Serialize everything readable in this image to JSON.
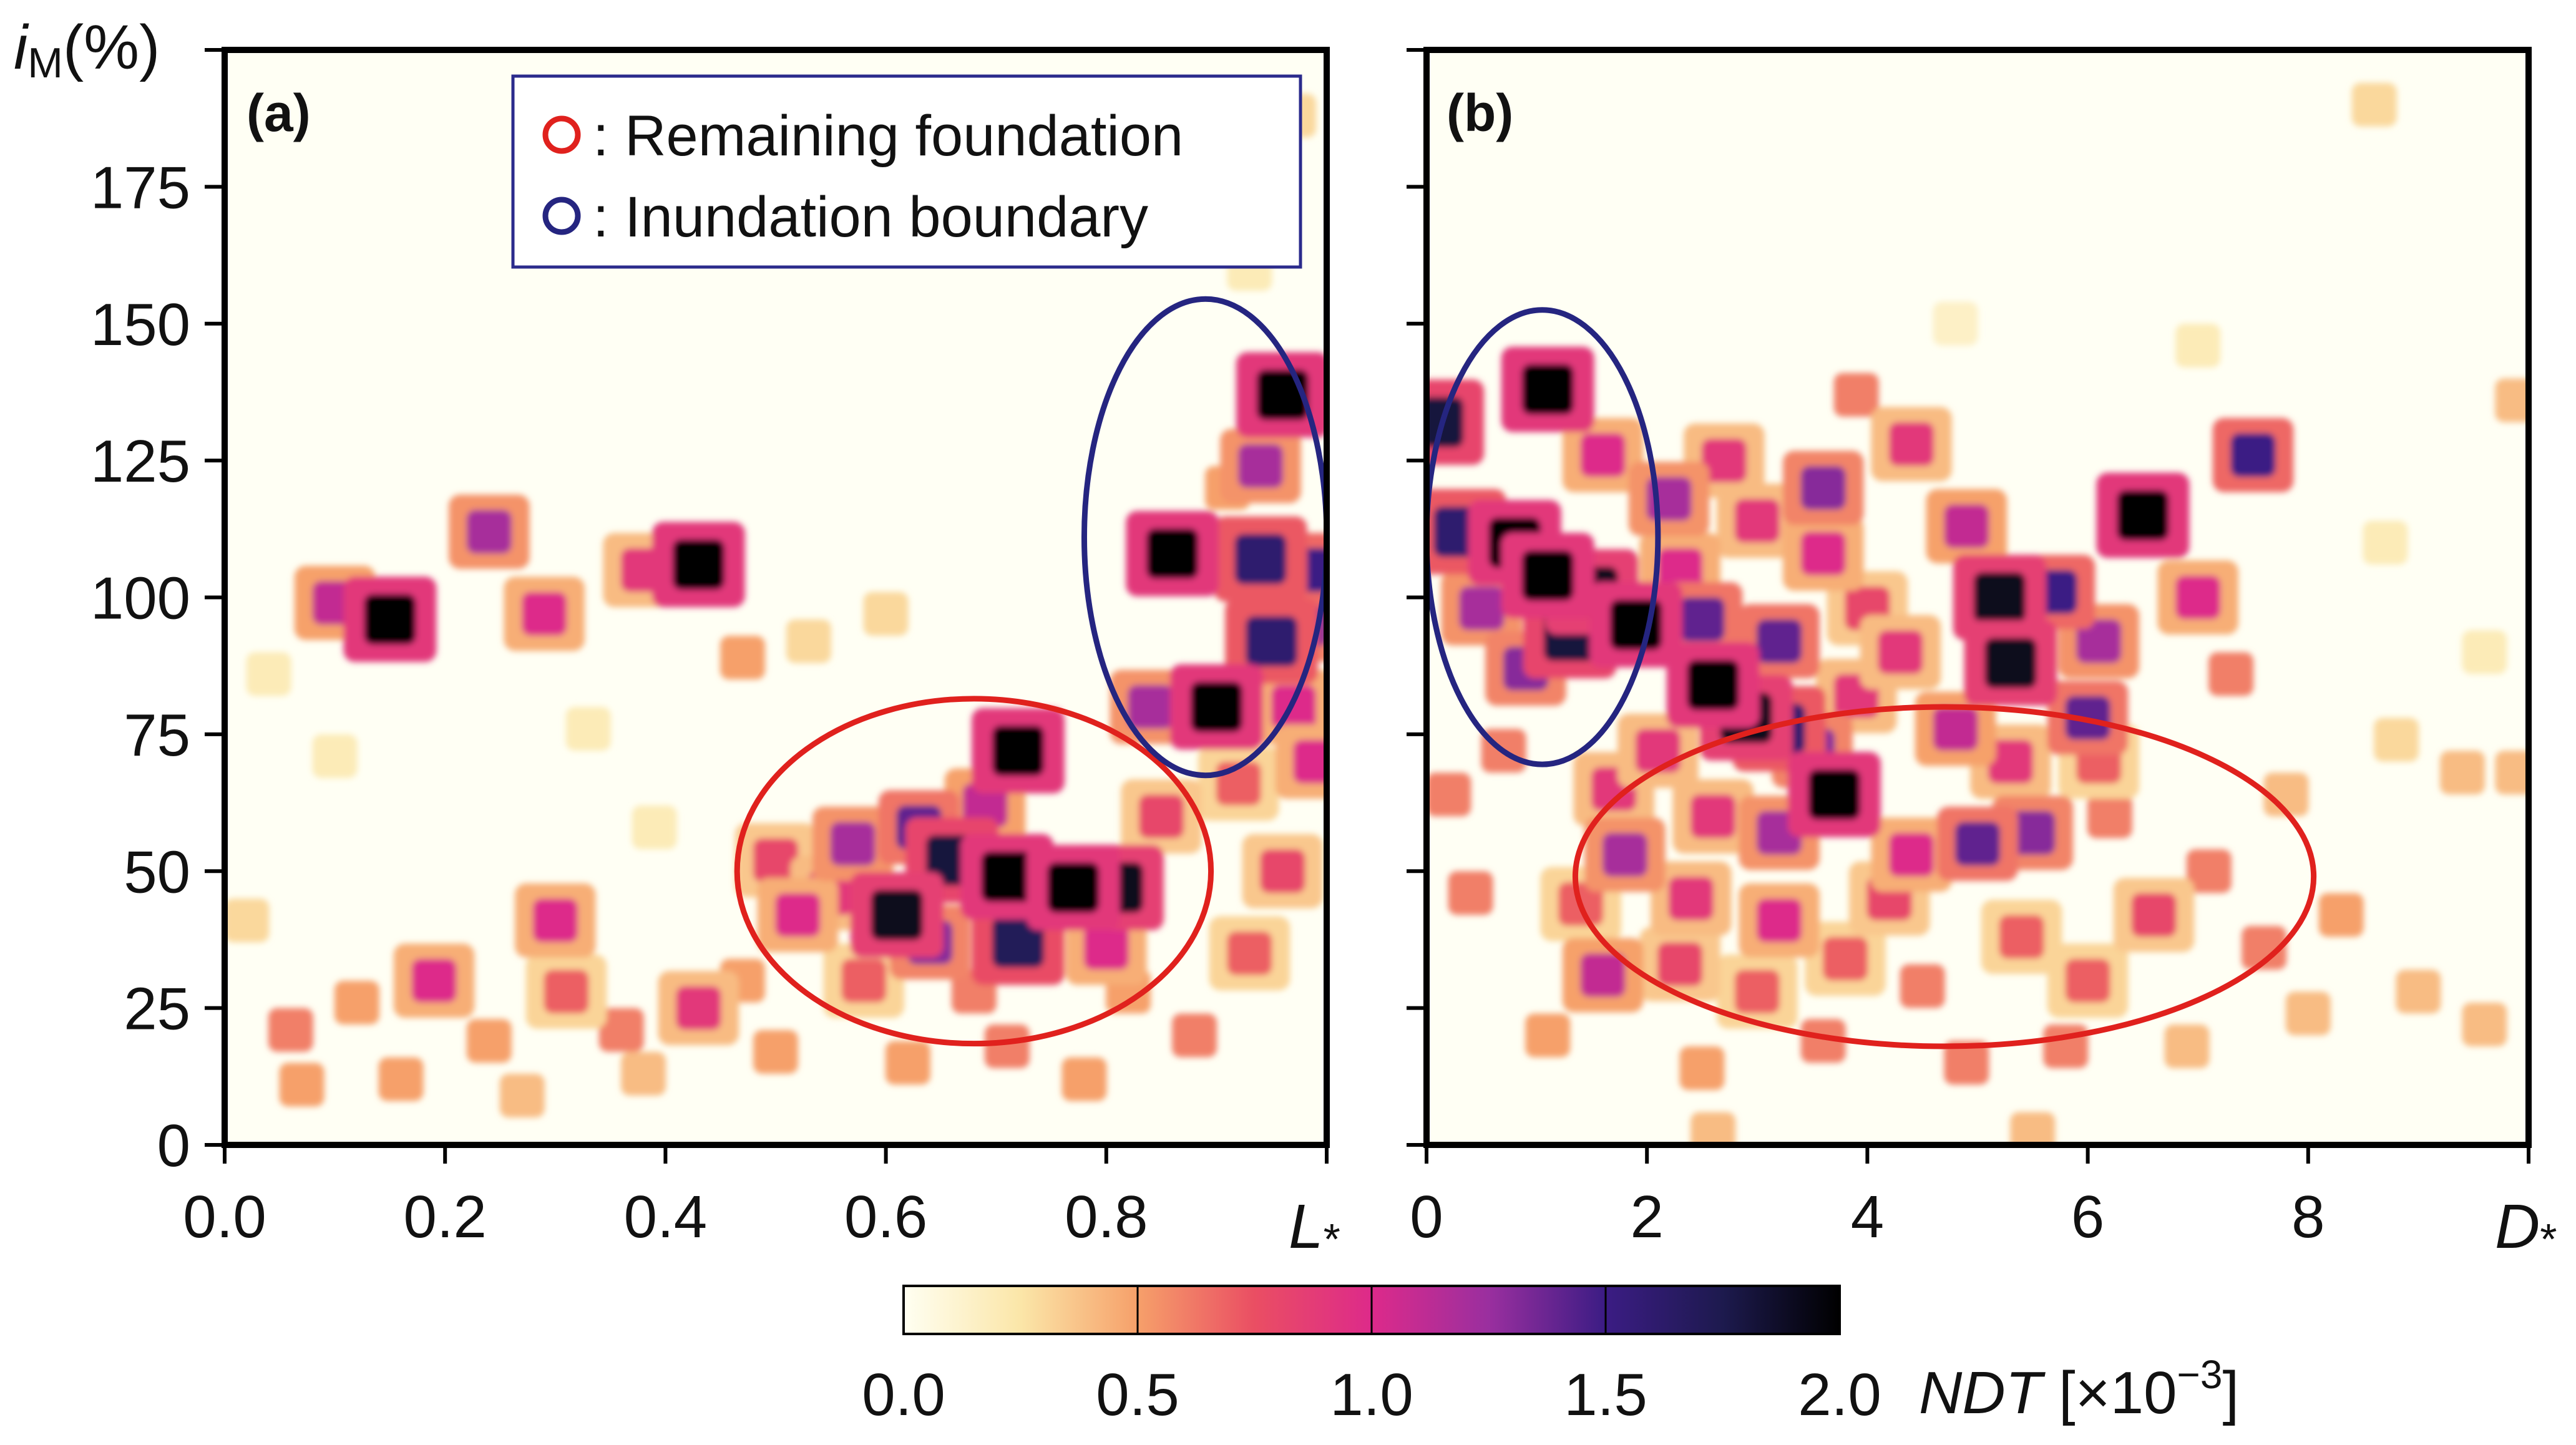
{
  "chart_data": {
    "type": "heatmap",
    "colormap": {
      "name": "magma_r",
      "stops": [
        {
          "value": 0.0,
          "color": "#fffff2"
        },
        {
          "value": 0.25,
          "color": "#fbe6a8"
        },
        {
          "value": 0.5,
          "color": "#f6a06a"
        },
        {
          "value": 0.75,
          "color": "#ea4e63"
        },
        {
          "value": 1.0,
          "color": "#dd2a8a"
        },
        {
          "value": 1.25,
          "color": "#9a2f9f"
        },
        {
          "value": 1.5,
          "color": "#3b1c84"
        },
        {
          "value": 1.75,
          "color": "#1d1a4e"
        },
        {
          "value": 2.0,
          "color": "#000000"
        }
      ]
    },
    "y_axis": {
      "label_main": "i",
      "label_sub": "M",
      "label_unit": "(%)",
      "range": [
        0,
        200
      ],
      "ticks": [
        "0",
        "25",
        "50",
        "75",
        "100",
        "125",
        "150",
        "175"
      ]
    },
    "colorbar": {
      "range": [
        0,
        2.0
      ],
      "ticks": [
        "0.0",
        "0.5",
        "1.0",
        "1.5",
        "2.0"
      ],
      "label": "NDT",
      "unit_prefix": " [×10",
      "unit_exp": "−3",
      "unit_suffix": "]"
    },
    "legend": {
      "items": [
        {
          "label": ": Remaining foundation",
          "color": "#e0211d"
        },
        {
          "label": ": Inundation boundary",
          "color": "#252580"
        }
      ]
    },
    "panels": [
      {
        "id": "a",
        "label": "(a)",
        "xlabel": "L",
        "xlabel_sub": "*",
        "xlim": [
          0,
          1.0
        ],
        "xticks": [
          "0.0",
          "0.2",
          "0.4",
          "0.6",
          "0.8"
        ],
        "ellipses": [
          {
            "name": "remaining-foundation",
            "color": "#e0211d",
            "cx": 0.68,
            "cy": 50,
            "rx": 0.215,
            "ry": 31.5
          },
          {
            "name": "inundation-boundary",
            "color": "#252580",
            "cx": 0.89,
            "cy": 111,
            "rx": 0.11,
            "ry": 43.5
          }
        ],
        "cells": [
          [
            0.1,
            99,
            1.1
          ],
          [
            0.15,
            96,
            2.0
          ],
          [
            0.24,
            112,
            1.2
          ],
          [
            0.29,
            97,
            1.0
          ],
          [
            0.38,
            105,
            0.9
          ],
          [
            0.43,
            106,
            2.0
          ],
          [
            0.47,
            89,
            0.5
          ],
          [
            0.53,
            92,
            0.3
          ],
          [
            0.6,
            97,
            0.3
          ],
          [
            0.72,
            72,
            2.0
          ],
          [
            0.69,
            62,
            1.1
          ],
          [
            0.66,
            52,
            1.8
          ],
          [
            0.71,
            49,
            2.0
          ],
          [
            0.77,
            47,
            2.0
          ],
          [
            0.81,
            47,
            1.9
          ],
          [
            0.63,
            58,
            1.4
          ],
          [
            0.57,
            55,
            1.2
          ],
          [
            0.5,
            52,
            0.8
          ],
          [
            0.55,
            46,
            0.9
          ],
          [
            0.61,
            42,
            1.9
          ],
          [
            0.64,
            37,
            1.3
          ],
          [
            0.72,
            37,
            1.7
          ],
          [
            0.8,
            36,
            1.0
          ],
          [
            0.52,
            42,
            1.0
          ],
          [
            0.58,
            30,
            0.7
          ],
          [
            0.68,
            28,
            0.6
          ],
          [
            0.47,
            30,
            0.5
          ],
          [
            0.43,
            25,
            0.9
          ],
          [
            0.36,
            21,
            0.6
          ],
          [
            0.31,
            28,
            0.7
          ],
          [
            0.19,
            30,
            1.0
          ],
          [
            0.12,
            26,
            0.5
          ],
          [
            0.06,
            21,
            0.6
          ],
          [
            0.24,
            19,
            0.5
          ],
          [
            0.3,
            41,
            1.0
          ],
          [
            0.07,
            11,
            0.5
          ],
          [
            0.16,
            12,
            0.5
          ],
          [
            0.27,
            9,
            0.4
          ],
          [
            0.38,
            13,
            0.4
          ],
          [
            0.5,
            17,
            0.5
          ],
          [
            0.62,
            15,
            0.5
          ],
          [
            0.71,
            18,
            0.6
          ],
          [
            0.78,
            12,
            0.5
          ],
          [
            0.02,
            41,
            0.3
          ],
          [
            0.04,
            86,
            0.2
          ],
          [
            0.1,
            71,
            0.2
          ],
          [
            0.33,
            76,
            0.2
          ],
          [
            0.39,
            58,
            0.2
          ],
          [
            0.82,
            28,
            0.5
          ],
          [
            0.88,
            20,
            0.6
          ],
          [
            0.93,
            35,
            0.7
          ],
          [
            0.96,
            50,
            0.8
          ],
          [
            0.85,
            60,
            0.8
          ],
          [
            0.92,
            66,
            0.7
          ],
          [
            0.96,
            137,
            2.0
          ],
          [
            0.94,
            124,
            1.2
          ],
          [
            0.86,
            108,
            2.0
          ],
          [
            0.94,
            107,
            1.6
          ],
          [
            0.99,
            105,
            1.5
          ],
          [
            0.95,
            92,
            1.6
          ],
          [
            0.9,
            80,
            2.0
          ],
          [
            0.84,
            80,
            1.2
          ],
          [
            0.97,
            80,
            1.0
          ],
          [
            0.91,
            120,
            0.5
          ],
          [
            0.98,
            95,
            1.3
          ],
          [
            0.99,
            70,
            1.0
          ],
          [
            0.97,
            188,
            0.3
          ],
          [
            0.93,
            160,
            0.2
          ]
        ]
      },
      {
        "id": "b",
        "label": "(b)",
        "xlabel": "D",
        "xlabel_sub": "*",
        "xlim": [
          0,
          10
        ],
        "xticks": [
          "0",
          "2",
          "4",
          "6",
          "8"
        ],
        "ellipses": [
          {
            "name": "inundation-boundary",
            "color": "#252580",
            "cx": 1.05,
            "cy": 111,
            "rx": 1.05,
            "ry": 41.5
          },
          {
            "name": "remaining-foundation",
            "color": "#e0211d",
            "cx": 4.7,
            "cy": 49,
            "rx": 3.35,
            "ry": 31
          }
        ],
        "cells": [
          [
            0.1,
            132,
            1.8
          ],
          [
            1.1,
            138,
            2.0
          ],
          [
            0.3,
            112,
            1.6
          ],
          [
            0.8,
            110,
            2.0
          ],
          [
            1.1,
            104,
            2.0
          ],
          [
            1.5,
            101,
            1.9
          ],
          [
            1.3,
            93,
            1.8
          ],
          [
            1.9,
            95,
            2.0
          ],
          [
            2.5,
            96,
            1.4
          ],
          [
            0.5,
            98,
            1.2
          ],
          [
            0.9,
            87,
            1.3
          ],
          [
            1.6,
            126,
            1.0
          ],
          [
            2.2,
            118,
            1.2
          ],
          [
            2.3,
            105,
            1.0
          ],
          [
            2.6,
            84,
            2.0
          ],
          [
            2.9,
            78,
            1.9
          ],
          [
            3.2,
            76,
            1.6
          ],
          [
            3.5,
            72,
            1.3
          ],
          [
            3.2,
            92,
            1.4
          ],
          [
            3.6,
            108,
            1.0
          ],
          [
            3.7,
            64,
            2.0
          ],
          [
            3.2,
            57,
            1.2
          ],
          [
            3.9,
            82,
            0.9
          ],
          [
            3.6,
            120,
            1.3
          ],
          [
            4.0,
            98,
            0.8
          ],
          [
            4.3,
            90,
            0.9
          ],
          [
            4.4,
            128,
            0.9
          ],
          [
            4.9,
            113,
            1.1
          ],
          [
            5.2,
            100,
            1.9
          ],
          [
            5.3,
            88,
            1.9
          ],
          [
            5.7,
            101,
            1.5
          ],
          [
            6.1,
            92,
            1.2
          ],
          [
            6.5,
            115,
            2.0
          ],
          [
            7.0,
            100,
            1.0
          ],
          [
            7.5,
            126,
            1.5
          ],
          [
            7.3,
            86,
            0.6
          ],
          [
            6.0,
            78,
            1.4
          ],
          [
            5.3,
            70,
            0.9
          ],
          [
            4.8,
            76,
            1.1
          ],
          [
            5.0,
            55,
            1.4
          ],
          [
            5.5,
            57,
            1.3
          ],
          [
            4.4,
            53,
            1.0
          ],
          [
            4.2,
            45,
            0.8
          ],
          [
            3.2,
            41,
            1.0
          ],
          [
            2.4,
            45,
            0.9
          ],
          [
            1.8,
            53,
            1.2
          ],
          [
            1.7,
            65,
            0.9
          ],
          [
            2.1,
            72,
            0.9
          ],
          [
            1.6,
            31,
            1.1
          ],
          [
            2.3,
            33,
            0.8
          ],
          [
            3.0,
            28,
            0.7
          ],
          [
            3.8,
            34,
            0.7
          ],
          [
            4.5,
            29,
            0.6
          ],
          [
            5.4,
            38,
            0.7
          ],
          [
            6.0,
            30,
            0.7
          ],
          [
            6.6,
            42,
            0.8
          ],
          [
            7.1,
            50,
            0.6
          ],
          [
            7.6,
            36,
            0.6
          ],
          [
            8.3,
            42,
            0.5
          ],
          [
            9.0,
            28,
            0.4
          ],
          [
            9.6,
            22,
            0.4
          ],
          [
            5.8,
            18,
            0.6
          ],
          [
            4.9,
            15,
            0.6
          ],
          [
            3.6,
            19,
            0.6
          ],
          [
            2.5,
            14,
            0.5
          ],
          [
            1.1,
            20,
            0.5
          ],
          [
            0.4,
            46,
            0.6
          ],
          [
            0.2,
            64,
            0.6
          ],
          [
            0.7,
            72,
            0.6
          ],
          [
            1.4,
            44,
            0.7
          ],
          [
            2.6,
            60,
            0.9
          ],
          [
            6.2,
            60,
            0.6
          ],
          [
            7.8,
            64,
            0.4
          ],
          [
            8.8,
            74,
            0.3
          ],
          [
            9.4,
            68,
            0.4
          ],
          [
            2.7,
            125,
            0.9
          ],
          [
            3.9,
            137,
            0.6
          ],
          [
            3.0,
            114,
            0.9
          ],
          [
            9.9,
            136,
            0.4
          ],
          [
            8.6,
            190,
            0.3
          ],
          [
            6.1,
            70,
            0.7
          ],
          [
            6.9,
            18,
            0.4
          ],
          [
            8.0,
            24,
            0.4
          ],
          [
            2.6,
            2,
            0.4
          ],
          [
            5.5,
            2,
            0.4
          ],
          [
            9.9,
            68,
            0.4
          ],
          [
            8.7,
            110,
            0.2
          ],
          [
            7.0,
            146,
            0.2
          ],
          [
            4.8,
            150,
            0.15
          ],
          [
            9.6,
            90,
            0.2
          ]
        ]
      }
    ]
  }
}
